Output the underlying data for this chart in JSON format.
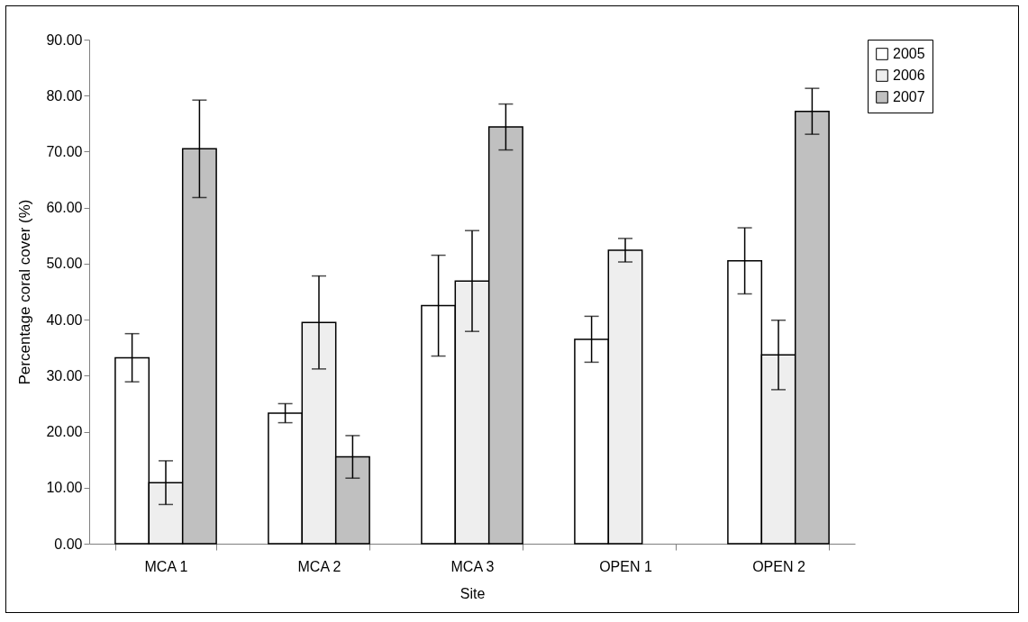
{
  "chart_data": {
    "type": "bar",
    "xlabel": "Site",
    "ylabel": "Percentage  coral cover (%)",
    "categories": [
      "MCA 1",
      "MCA 2",
      "MCA 3",
      "OPEN 1",
      "OPEN 2"
    ],
    "series": [
      {
        "name": "2005",
        "color": "#ffffff",
        "values": [
          33.2,
          23.3,
          42.5,
          36.5,
          50.5
        ],
        "errors": [
          4.3,
          1.7,
          9.0,
          4.1,
          5.9
        ]
      },
      {
        "name": "2006",
        "color": "#eeeeee",
        "values": [
          10.9,
          39.5,
          46.9,
          52.4,
          33.7
        ],
        "errors": [
          3.9,
          8.3,
          9.0,
          2.1,
          6.2
        ]
      },
      {
        "name": "2007",
        "color": "#c0c0c0",
        "values": [
          70.5,
          15.5,
          74.4,
          null,
          77.2
        ],
        "errors": [
          8.7,
          3.8,
          4.1,
          null,
          4.1
        ]
      }
    ],
    "ylim": [
      0,
      90
    ],
    "yticks": [
      {
        "value": 0,
        "label": "0.00"
      },
      {
        "value": 10,
        "label": "10.00"
      },
      {
        "value": 20,
        "label": "20.00"
      },
      {
        "value": 30,
        "label": "30.00"
      },
      {
        "value": 40,
        "label": "40.00"
      },
      {
        "value": 50,
        "label": "50.00"
      },
      {
        "value": 60,
        "label": "60.00"
      },
      {
        "value": 70,
        "label": "70.00"
      },
      {
        "value": 80,
        "label": "80.00"
      },
      {
        "value": 90,
        "label": "90.00"
      }
    ],
    "grid": false,
    "legend": "right"
  }
}
